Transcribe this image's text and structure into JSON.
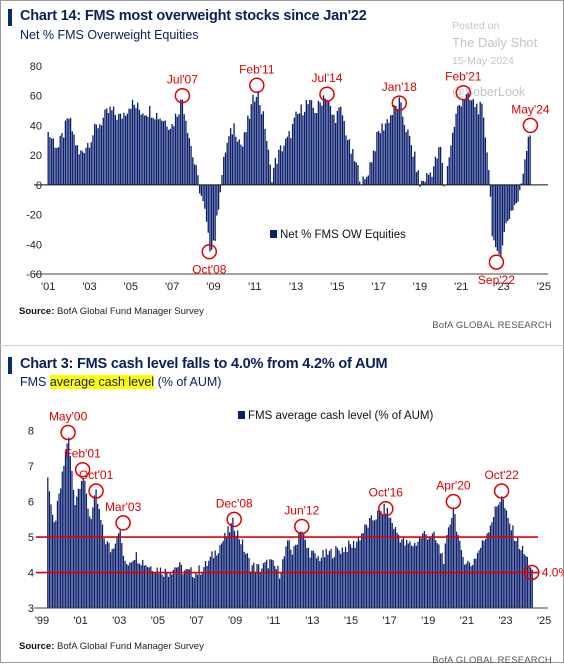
{
  "watermark": {
    "line1": "Posted on",
    "line2": "The Daily Shot",
    "line3": "15-May-2024",
    "line4": "@SoberLook"
  },
  "colors": {
    "bars": "#0a1f6e",
    "annotation": "#e00000",
    "title": "#0a1f5c"
  },
  "chart_data": [
    {
      "type": "bar",
      "title": "Chart 14: FMS most overweight stocks since Jan'22",
      "subtitle": "Net % FMS Overweight Equities",
      "series": [
        {
          "name": "Net % FMS OW Equities",
          "color": "#0a1f6e"
        }
      ],
      "ylim": [
        -60,
        80
      ],
      "yticks": [
        -60,
        -40,
        -20,
        0,
        20,
        40,
        60,
        80
      ],
      "xlim": [
        2000.7,
        2025.2
      ],
      "xticks": [
        {
          "x": 2001,
          "label": "'01"
        },
        {
          "x": 2003,
          "label": "'03"
        },
        {
          "x": 2005,
          "label": "'05"
        },
        {
          "x": 2007,
          "label": "'07"
        },
        {
          "x": 2009,
          "label": "'09"
        },
        {
          "x": 2011,
          "label": "'11"
        },
        {
          "x": 2013,
          "label": "'13"
        },
        {
          "x": 2015,
          "label": "'15"
        },
        {
          "x": 2017,
          "label": "'17"
        },
        {
          "x": 2019,
          "label": "'19"
        },
        {
          "x": 2021,
          "label": "'21"
        },
        {
          "x": 2023,
          "label": "'23"
        },
        {
          "x": 2025,
          "label": "'25"
        }
      ],
      "legend": "bottom-right",
      "grid": false,
      "keypoints": [
        [
          2001.0,
          35
        ],
        [
          2001.5,
          25
        ],
        [
          2002.0,
          45
        ],
        [
          2002.5,
          20
        ],
        [
          2003.0,
          30
        ],
        [
          2003.4,
          40
        ],
        [
          2004.0,
          50
        ],
        [
          2004.5,
          45
        ],
        [
          2005.0,
          55
        ],
        [
          2005.5,
          50
        ],
        [
          2006.0,
          50
        ],
        [
          2006.5,
          45
        ],
        [
          2007.0,
          40
        ],
        [
          2007.5,
          58
        ],
        [
          2008.0,
          20
        ],
        [
          2008.3,
          0
        ],
        [
          2008.6,
          -20
        ],
        [
          2008.8,
          -42
        ],
        [
          2009.1,
          -35
        ],
        [
          2009.3,
          -5
        ],
        [
          2009.6,
          25
        ],
        [
          2010.0,
          40
        ],
        [
          2010.4,
          25
        ],
        [
          2010.8,
          50
        ],
        [
          2011.1,
          65
        ],
        [
          2011.5,
          40
        ],
        [
          2011.8,
          5
        ],
        [
          2012.0,
          15
        ],
        [
          2012.3,
          25
        ],
        [
          2012.6,
          30
        ],
        [
          2013.0,
          45
        ],
        [
          2013.5,
          55
        ],
        [
          2014.0,
          50
        ],
        [
          2014.4,
          62
        ],
        [
          2014.8,
          45
        ],
        [
          2015.2,
          50
        ],
        [
          2015.6,
          25
        ],
        [
          2016.0,
          10
        ],
        [
          2016.3,
          0
        ],
        [
          2016.6,
          15
        ],
        [
          2017.0,
          35
        ],
        [
          2017.5,
          45
        ],
        [
          2018.0,
          55
        ],
        [
          2018.4,
          35
        ],
        [
          2018.8,
          15
        ],
        [
          2019.0,
          0
        ],
        [
          2019.3,
          5
        ],
        [
          2019.6,
          10
        ],
        [
          2020.0,
          25
        ],
        [
          2020.2,
          -5
        ],
        [
          2020.4,
          20
        ],
        [
          2020.8,
          50
        ],
        [
          2021.1,
          60
        ],
        [
          2021.6,
          55
        ],
        [
          2022.0,
          50
        ],
        [
          2022.3,
          20
        ],
        [
          2022.5,
          -30
        ],
        [
          2022.7,
          -50
        ],
        [
          2022.9,
          -45
        ],
        [
          2023.2,
          -25
        ],
        [
          2023.5,
          -15
        ],
        [
          2023.8,
          -10
        ],
        [
          2024.0,
          10
        ],
        [
          2024.2,
          30
        ],
        [
          2024.33,
          40
        ],
        [
          2024.36,
          0
        ]
      ],
      "annotations": [
        {
          "label": "Jul'07",
          "x": 2007.5,
          "y": 60
        },
        {
          "label": "Oct'08",
          "x": 2008.8,
          "y": -45
        },
        {
          "label": "Feb'11",
          "x": 2011.1,
          "y": 67
        },
        {
          "label": "Jul'14",
          "x": 2014.5,
          "y": 61
        },
        {
          "label": "Jan'18",
          "x": 2018.0,
          "y": 55
        },
        {
          "label": "Feb'21",
          "x": 2021.1,
          "y": 62
        },
        {
          "label": "Sep'22",
          "x": 2022.7,
          "y": -52
        },
        {
          "label": "May'24",
          "x": 2024.35,
          "y": 40
        }
      ],
      "source_label": "Source:",
      "source": "BofA Global Fund Manager Survey",
      "brand": "BofA GLOBAL RESEARCH"
    },
    {
      "type": "bar",
      "title": "Chart 3: FMS cash level falls to 4.0% from 4.2% of AUM",
      "subtitle_pre": "FMS ",
      "subtitle_hl": "average cash level",
      "subtitle_post": " (% of AUM)",
      "series": [
        {
          "name": "FMS average cash level (% of AUM)",
          "color": "#0a1f6e"
        }
      ],
      "ylim": [
        3,
        8.5
      ],
      "yticks": [
        3,
        4,
        5,
        6,
        7,
        8
      ],
      "xlim": [
        1999.0,
        2025.2
      ],
      "xticks": [
        {
          "x": 1999,
          "label": "'99"
        },
        {
          "x": 2001,
          "label": "'01"
        },
        {
          "x": 2003,
          "label": "'03"
        },
        {
          "x": 2005,
          "label": "'05"
        },
        {
          "x": 2007,
          "label": "'07"
        },
        {
          "x": 2009,
          "label": "'09"
        },
        {
          "x": 2011,
          "label": "'11"
        },
        {
          "x": 2013,
          "label": "'13"
        },
        {
          "x": 2015,
          "label": "'15"
        },
        {
          "x": 2017,
          "label": "'17"
        },
        {
          "x": 2019,
          "label": "'19"
        },
        {
          "x": 2021,
          "label": "'21"
        },
        {
          "x": 2023,
          "label": "'23"
        },
        {
          "x": 2025,
          "label": "'25"
        }
      ],
      "hlines": [
        5.0,
        4.0
      ],
      "legend": "top-center",
      "grid": false,
      "keypoints": [
        [
          1999.3,
          6.8
        ],
        [
          1999.6,
          5.2
        ],
        [
          2000.0,
          6.5
        ],
        [
          2000.35,
          7.9
        ],
        [
          2000.7,
          6.0
        ],
        [
          2001.1,
          6.8
        ],
        [
          2001.5,
          5.5
        ],
        [
          2001.8,
          6.2
        ],
        [
          2002.2,
          5.0
        ],
        [
          2002.6,
          4.6
        ],
        [
          2003.0,
          5.3
        ],
        [
          2003.3,
          4.2
        ],
        [
          2003.8,
          4.5
        ],
        [
          2004.5,
          4.2
        ],
        [
          2005.0,
          4.1
        ],
        [
          2005.5,
          4.0
        ],
        [
          2006.0,
          4.2
        ],
        [
          2006.5,
          4.0
        ],
        [
          2007.0,
          4.0
        ],
        [
          2007.5,
          4.2
        ],
        [
          2008.0,
          4.6
        ],
        [
          2008.5,
          5.0
        ],
        [
          2008.9,
          5.4
        ],
        [
          2009.3,
          4.9
        ],
        [
          2009.8,
          4.2
        ],
        [
          2010.3,
          4.1
        ],
        [
          2010.8,
          4.3
        ],
        [
          2011.3,
          4.0
        ],
        [
          2011.8,
          4.9
        ],
        [
          2012.0,
          4.5
        ],
        [
          2012.4,
          5.3
        ],
        [
          2012.7,
          4.7
        ],
        [
          2013.2,
          4.4
        ],
        [
          2013.7,
          4.5
        ],
        [
          2014.2,
          4.6
        ],
        [
          2014.7,
          4.7
        ],
        [
          2015.2,
          4.8
        ],
        [
          2015.8,
          5.3
        ],
        [
          2016.3,
          5.6
        ],
        [
          2016.8,
          5.8
        ],
        [
          2017.3,
          5.2
        ],
        [
          2017.8,
          4.8
        ],
        [
          2018.3,
          4.8
        ],
        [
          2018.8,
          5.1
        ],
        [
          2019.3,
          5.0
        ],
        [
          2019.8,
          4.4
        ],
        [
          2020.3,
          5.9
        ],
        [
          2020.7,
          4.5
        ],
        [
          2021.2,
          4.2
        ],
        [
          2021.8,
          4.8
        ],
        [
          2022.3,
          5.5
        ],
        [
          2022.8,
          6.2
        ],
        [
          2023.1,
          5.5
        ],
        [
          2023.6,
          4.9
        ],
        [
          2024.0,
          4.5
        ],
        [
          2024.3,
          4.2
        ],
        [
          2024.36,
          4.0
        ]
      ],
      "annotations": [
        {
          "label": "May'00",
          "x": 2000.35,
          "y": 7.95
        },
        {
          "label": "Feb'01",
          "x": 2001.1,
          "y": 6.9
        },
        {
          "label": "Oct'01",
          "x": 2001.8,
          "y": 6.3
        },
        {
          "label": "Mar'03",
          "x": 2003.2,
          "y": 5.4
        },
        {
          "label": "Dec'08",
          "x": 2008.95,
          "y": 5.5
        },
        {
          "label": "Jun'12",
          "x": 2012.45,
          "y": 5.3
        },
        {
          "label": "Oct'16",
          "x": 2016.8,
          "y": 5.8
        },
        {
          "label": "Apr'20",
          "x": 2020.3,
          "y": 6.0
        },
        {
          "label": "Oct'22",
          "x": 2022.8,
          "y": 6.3
        },
        {
          "label": "4.0%",
          "x": 2024.36,
          "y": 4.0
        }
      ],
      "source_label": "Source:",
      "source": "BofA Global Fund Manager Survey",
      "brand": "BofA GLOBAL RESEARCH"
    }
  ]
}
